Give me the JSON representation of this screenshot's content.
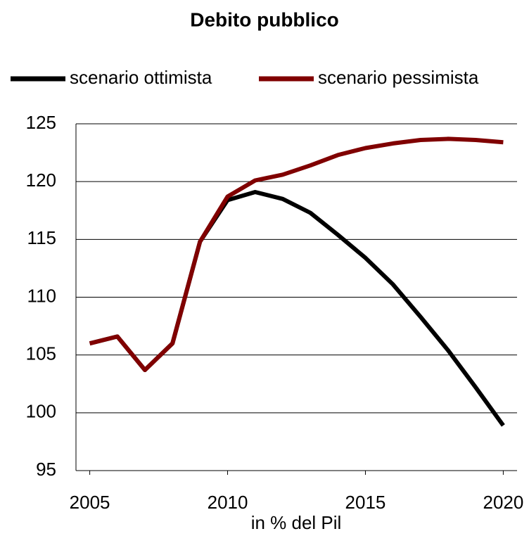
{
  "chart_data": {
    "type": "line",
    "title": "Debito pubblico",
    "x_label": "in % del Pil",
    "x": [
      2005,
      2006,
      2007,
      2008,
      2009,
      2010,
      2011,
      2012,
      2013,
      2014,
      2015,
      2016,
      2017,
      2018,
      2019,
      2020
    ],
    "series": [
      {
        "name": "scenario ottimista",
        "color": "#000000",
        "values": [
          106.0,
          106.6,
          103.7,
          106.0,
          114.8,
          118.4,
          119.1,
          118.5,
          117.3,
          115.4,
          113.4,
          111.1,
          108.3,
          105.4,
          102.2,
          98.9
        ]
      },
      {
        "name": "scenario pessimista",
        "color": "#800000",
        "values": [
          106.0,
          106.6,
          103.7,
          106.0,
          114.8,
          118.7,
          120.1,
          120.6,
          121.4,
          122.3,
          122.9,
          123.3,
          123.6,
          123.7,
          123.6,
          123.4
        ]
      }
    ],
    "xlim": [
      2004.5,
      2020.5
    ],
    "xticks": [
      2005,
      2010,
      2015,
      2020
    ],
    "ylim": [
      95,
      125
    ],
    "yticks": [
      95,
      100,
      105,
      110,
      115,
      120,
      125
    ],
    "grid": true
  }
}
